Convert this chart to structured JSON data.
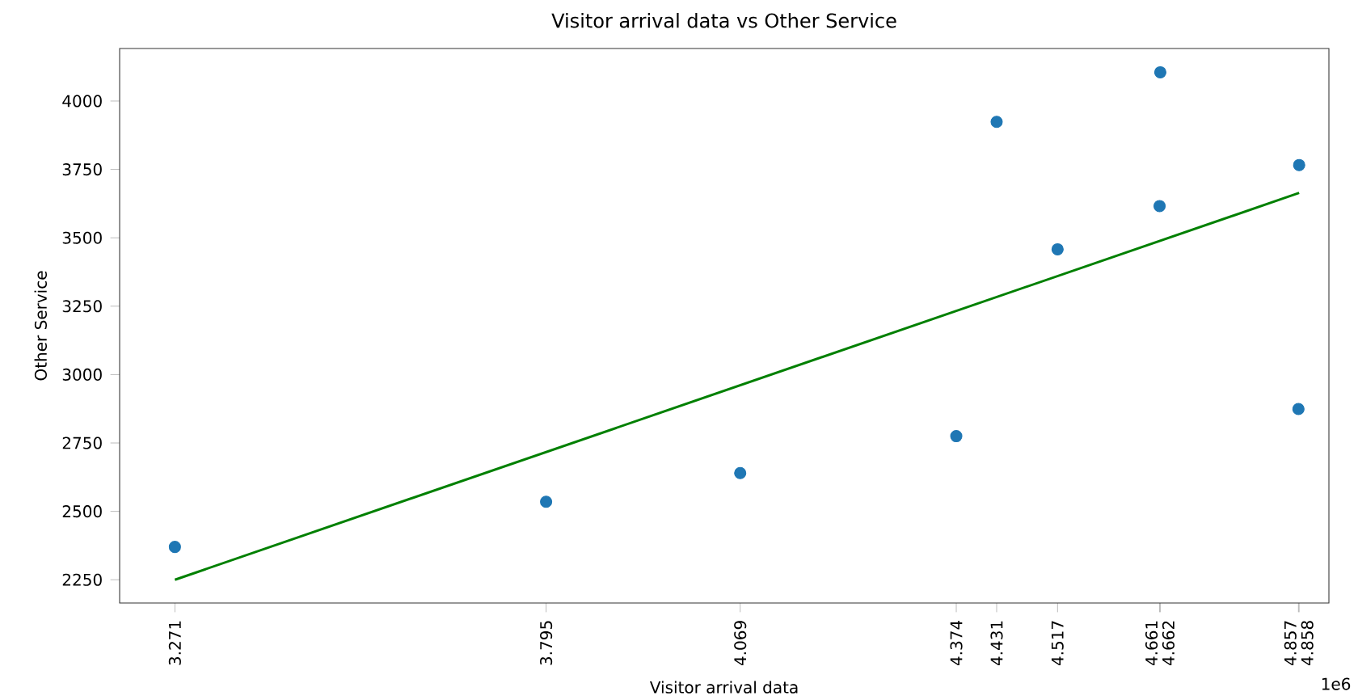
{
  "chart_data": {
    "type": "scatter",
    "title": "Visitor arrival data vs Other Service",
    "xlabel": "Visitor arrival data",
    "ylabel": "Other Service",
    "xlim": [
      3.193,
      4.9
    ],
    "ylim": [
      2165,
      4192
    ],
    "xticks": [
      3.271,
      3.795,
      4.069,
      4.374,
      4.431,
      4.517,
      4.661,
      4.662,
      4.857,
      4.858
    ],
    "yticks": [
      2250,
      2500,
      2750,
      3000,
      3250,
      3500,
      3750,
      4000
    ],
    "annotations": [
      "1e6"
    ],
    "series": [
      {
        "marker": "circle",
        "color": "#1f77b4",
        "x": [
          3.271,
          3.795,
          4.069,
          4.374,
          4.431,
          4.517,
          4.661,
          4.662,
          4.857,
          4.858
        ],
        "values": [
          2370,
          2535,
          2640,
          2775,
          3924,
          3458,
          3616,
          4105,
          2874,
          3766
        ]
      },
      {
        "type": "line",
        "color": "#008000",
        "marker": "none",
        "line_style": "solid",
        "x": [
          3.271,
          4.858
        ],
        "values": [
          2250,
          3664
        ]
      }
    ]
  }
}
